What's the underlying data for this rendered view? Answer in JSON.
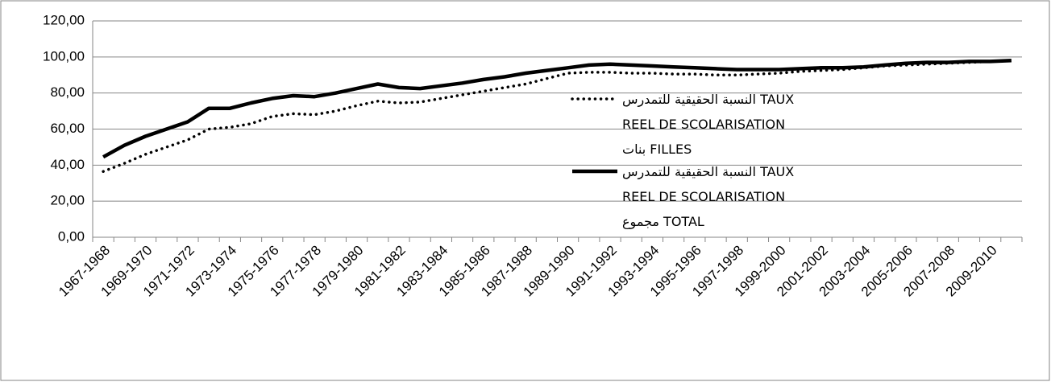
{
  "chart_data": {
    "type": "line",
    "categories": [
      "1967-1968",
      null,
      "1969-1970",
      null,
      "1971-1972",
      null,
      "1973-1974",
      null,
      "1975-1976",
      null,
      "1977-1978",
      null,
      "1979-1980",
      null,
      "1981-1982",
      null,
      "1983-1984",
      null,
      "1985-1986",
      null,
      "1987-1988",
      null,
      "1989-1990",
      null,
      "1991-1992",
      null,
      "1993-1994",
      null,
      "1995-1996",
      null,
      "1997-1998",
      null,
      "1999-2000",
      null,
      "2001-2002",
      null,
      "2003-2004",
      null,
      "2005-2006",
      null,
      "2007-2008",
      null,
      "2009-2010",
      null
    ],
    "series": [
      {
        "name": "النسبة الحقيقية للتمدرس  TAUX\nREEL DE SCOLARISATION\nبنات FILLES",
        "color": "#000000",
        "dash": "dotted",
        "values": [
          36.5,
          41,
          46,
          50,
          54,
          60,
          61,
          63,
          67,
          68.5,
          68,
          70,
          73,
          75.5,
          74.5,
          75,
          77,
          79,
          81,
          83,
          85,
          88,
          91,
          91.5,
          91.5,
          91,
          91,
          90.5,
          90.5,
          90,
          90,
          90.5,
          91,
          92,
          92.5,
          93,
          94,
          95,
          95.5,
          96,
          96.5,
          97,
          97.5,
          98
        ]
      },
      {
        "name": "النسبة الحقيقية للتمدرس  TAUX\nREEL DE SCOLARISATION\nمجموع TOTAL",
        "color": "#000000",
        "dash": "solid",
        "values": [
          44.5,
          51,
          56,
          60,
          64,
          71.5,
          71.5,
          74.5,
          77,
          78.5,
          78,
          80,
          82.5,
          85,
          83,
          82.5,
          84,
          85.5,
          87.5,
          89,
          91,
          92.5,
          94,
          95.5,
          96,
          95.5,
          95,
          94.5,
          94,
          93.5,
          93,
          93,
          93,
          93.5,
          94,
          94,
          94.5,
          95.5,
          96.5,
          97,
          97,
          97.5,
          97.5,
          98
        ]
      }
    ],
    "ylim": [
      0,
      120
    ],
    "yticks": [
      {
        "value": 0,
        "label": "0,00"
      },
      {
        "value": 20,
        "label": "20,00"
      },
      {
        "value": 40,
        "label": "40,00"
      },
      {
        "value": 60,
        "label": "60,00"
      },
      {
        "value": 80,
        "label": "80,00"
      },
      {
        "value": 100,
        "label": "100,00"
      },
      {
        "value": 120,
        "label": "120,00"
      }
    ],
    "grid": true
  }
}
